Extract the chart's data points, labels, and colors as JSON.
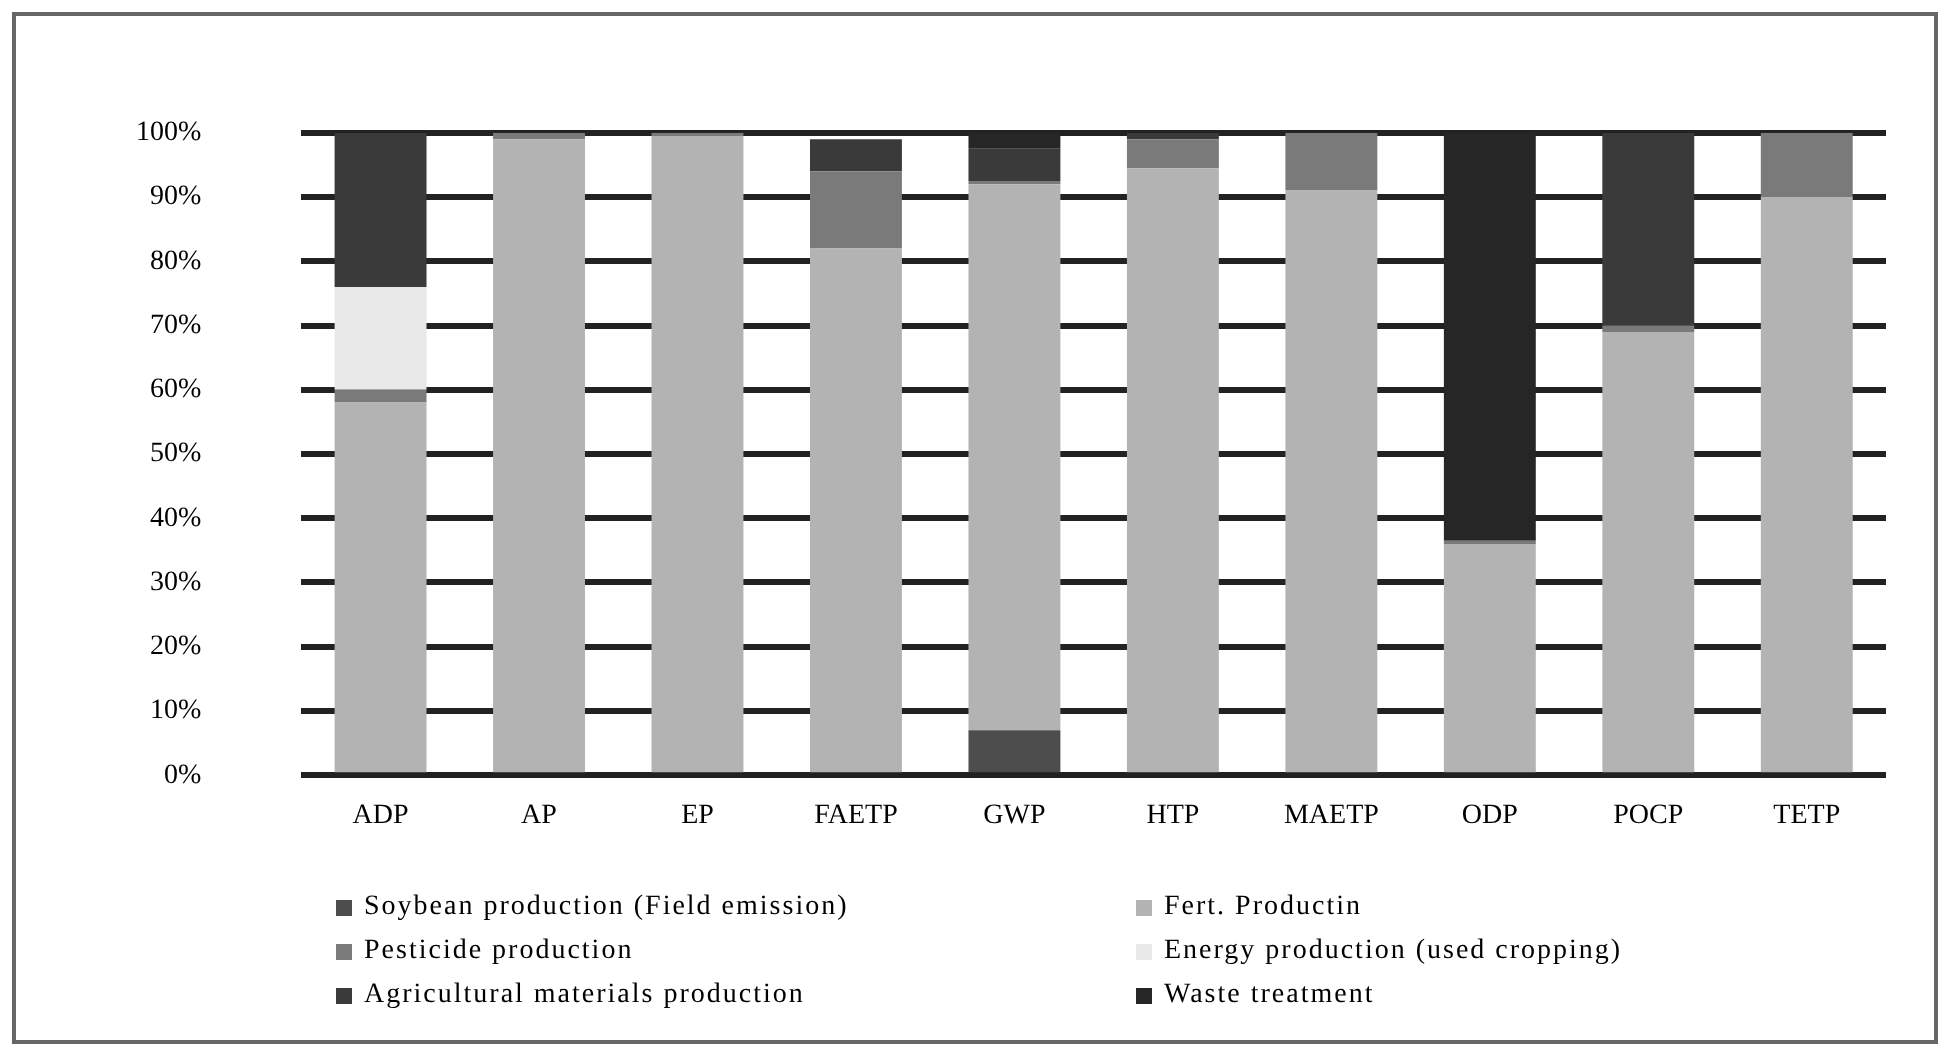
{
  "chart_data": {
    "type": "bar",
    "stacked": true,
    "categories": [
      "ADP",
      "AP",
      "EP",
      "FAETP",
      "GWP",
      "HTP",
      "MAETP",
      "ODP",
      "POCP",
      "TETP"
    ],
    "series": [
      {
        "name": "Soybean production (Field emission)",
        "color": "#4d4d4d",
        "values": [
          0,
          0,
          0,
          0,
          7,
          0,
          0,
          0,
          0,
          0
        ]
      },
      {
        "name": "Fert. Productin",
        "color": "#b3b3b3",
        "values": [
          58,
          99,
          99.5,
          82,
          85,
          94.5,
          91,
          36,
          69,
          90
        ]
      },
      {
        "name": "Pesticide production",
        "color": "#7a7a7a",
        "values": [
          2,
          1,
          0.5,
          12,
          0.5,
          4.5,
          9,
          0.5,
          1,
          10
        ]
      },
      {
        "name": "Energy production (used cropping)",
        "color": "#e8e8e8",
        "values": [
          16,
          0,
          0,
          0,
          0,
          0,
          0,
          0,
          0,
          0
        ]
      },
      {
        "name": "Agricultural materials production",
        "color": "#3a3a3a",
        "values": [
          24,
          0,
          0,
          5,
          5,
          1,
          0,
          0,
          30,
          0
        ]
      },
      {
        "name": "Waste treatment",
        "color": "#262626",
        "values": [
          0,
          0,
          0,
          0,
          2.5,
          0,
          0,
          63.5,
          0,
          0
        ]
      }
    ],
    "ylim": [
      0,
      100
    ],
    "yticks": [
      {
        "value": 0,
        "label": "0%"
      },
      {
        "value": 10,
        "label": "10%"
      },
      {
        "value": 20,
        "label": "20%"
      },
      {
        "value": 30,
        "label": "30%"
      },
      {
        "value": 40,
        "label": "40%"
      },
      {
        "value": 50,
        "label": "50%"
      },
      {
        "value": 60,
        "label": "60%"
      },
      {
        "value": 70,
        "label": "70%"
      },
      {
        "value": 80,
        "label": "80%"
      },
      {
        "value": 90,
        "label": "90%"
      },
      {
        "value": 100,
        "label": "100%"
      }
    ],
    "grid": "y",
    "legend": "bottom"
  }
}
